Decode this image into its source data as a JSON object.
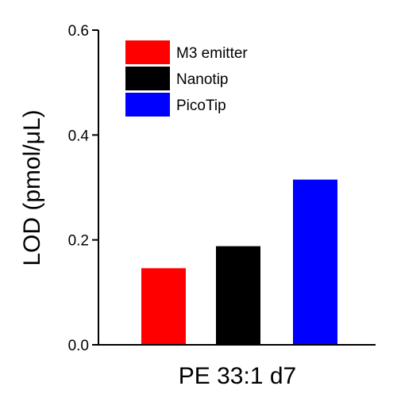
{
  "chart_data": {
    "type": "bar",
    "ylabel": "LOD (pmol/μL)",
    "xlabel": "PE 33:1 d7",
    "ylim": [
      0,
      0.6
    ],
    "yticks": [
      "0.0",
      "0.2",
      "0.4",
      "0.6"
    ],
    "ytick_values": [
      0,
      0.2,
      0.4,
      0.6
    ],
    "series": [
      {
        "name": "M3 emitter",
        "value": 0.146,
        "color": "#ff0000"
      },
      {
        "name": "Nanotip",
        "value": 0.188,
        "color": "#000000"
      },
      {
        "name": "PicoTip",
        "value": 0.315,
        "color": "#0000ff"
      }
    ],
    "legend_position": "top-left",
    "grid": false
  }
}
